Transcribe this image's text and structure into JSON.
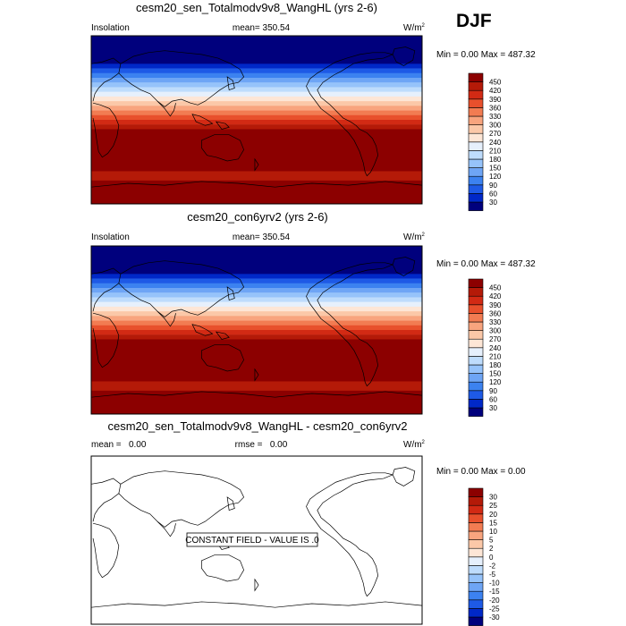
{
  "season": "DJF",
  "chart_data": [
    {
      "type": "heatmap",
      "title": "cesm20_sen_Totalmodv9v8_WangHL (yrs 2-6)",
      "left_label": "Insolation",
      "center_label": "mean= 350.54",
      "unit": "W/m",
      "unit_sup": "2",
      "stats_text": "Min =  0.00 Max = 487.32",
      "field": {
        "description": "Zonally uniform insolation, DJF",
        "lat_bands": [
          {
            "lat": [
              60,
              90
            ],
            "value": 15
          },
          {
            "lat": [
              55,
              60
            ],
            "value": 45
          },
          {
            "lat": [
              50,
              55
            ],
            "value": 75
          },
          {
            "lat": [
              45,
              50
            ],
            "value": 105
          },
          {
            "lat": [
              40,
              45
            ],
            "value": 135
          },
          {
            "lat": [
              35,
              40
            ],
            "value": 165
          },
          {
            "lat": [
              30,
              35
            ],
            "value": 195
          },
          {
            "lat": [
              25,
              30
            ],
            "value": 225
          },
          {
            "lat": [
              20,
              25
            ],
            "value": 255
          },
          {
            "lat": [
              15,
              20
            ],
            "value": 285
          },
          {
            "lat": [
              10,
              15
            ],
            "value": 315
          },
          {
            "lat": [
              5,
              10
            ],
            "value": 345
          },
          {
            "lat": [
              0,
              5
            ],
            "value": 375
          },
          {
            "lat": [
              -5,
              0
            ],
            "value": 405
          },
          {
            "lat": [
              -10,
              -5
            ],
            "value": 435
          },
          {
            "lat": [
              -55,
              -10
            ],
            "value": 465
          },
          {
            "lat": [
              -65,
              -55
            ],
            "value": 435
          },
          {
            "lat": [
              -90,
              -65
            ],
            "value": 465
          }
        ]
      },
      "colorbar": {
        "levels": [
          "30",
          "60",
          "90",
          "120",
          "150",
          "180",
          "210",
          "240",
          "270",
          "300",
          "330",
          "360",
          "390",
          "420",
          "450"
        ],
        "colors": [
          "#00007d",
          "#0028c8",
          "#1e5ae6",
          "#3c82f0",
          "#6ea5f5",
          "#96c3fa",
          "#bedcfc",
          "#e6f0fc",
          "#fde6d6",
          "#fbc8a8",
          "#f8a47e",
          "#f27c52",
          "#e8502c",
          "#d22a14",
          "#b41a08",
          "#8c0000"
        ]
      }
    },
    {
      "type": "heatmap",
      "title": "cesm20_con6yrv2 (yrs 2-6)",
      "left_label": "Insolation",
      "center_label": "mean= 350.54",
      "unit": "W/m",
      "unit_sup": "2",
      "stats_text": "Min =  0.00 Max = 487.32",
      "field": {
        "description": "Zonally uniform insolation, DJF",
        "lat_bands": [
          {
            "lat": [
              60,
              90
            ],
            "value": 15
          },
          {
            "lat": [
              55,
              60
            ],
            "value": 45
          },
          {
            "lat": [
              50,
              55
            ],
            "value": 75
          },
          {
            "lat": [
              45,
              50
            ],
            "value": 105
          },
          {
            "lat": [
              40,
              45
            ],
            "value": 135
          },
          {
            "lat": [
              35,
              40
            ],
            "value": 165
          },
          {
            "lat": [
              30,
              35
            ],
            "value": 195
          },
          {
            "lat": [
              25,
              30
            ],
            "value": 225
          },
          {
            "lat": [
              20,
              25
            ],
            "value": 255
          },
          {
            "lat": [
              15,
              20
            ],
            "value": 285
          },
          {
            "lat": [
              10,
              15
            ],
            "value": 315
          },
          {
            "lat": [
              5,
              10
            ],
            "value": 345
          },
          {
            "lat": [
              0,
              5
            ],
            "value": 375
          },
          {
            "lat": [
              -5,
              0
            ],
            "value": 405
          },
          {
            "lat": [
              -10,
              -5
            ],
            "value": 435
          },
          {
            "lat": [
              -55,
              -10
            ],
            "value": 465
          },
          {
            "lat": [
              -65,
              -55
            ],
            "value": 435
          },
          {
            "lat": [
              -90,
              -65
            ],
            "value": 465
          }
        ]
      },
      "colorbar": {
        "levels": [
          "30",
          "60",
          "90",
          "120",
          "150",
          "180",
          "210",
          "240",
          "270",
          "300",
          "330",
          "360",
          "390",
          "420",
          "450"
        ],
        "colors": [
          "#00007d",
          "#0028c8",
          "#1e5ae6",
          "#3c82f0",
          "#6ea5f5",
          "#96c3fa",
          "#bedcfc",
          "#e6f0fc",
          "#fde6d6",
          "#fbc8a8",
          "#f8a47e",
          "#f27c52",
          "#e8502c",
          "#d22a14",
          "#b41a08",
          "#8c0000"
        ]
      }
    },
    {
      "type": "heatmap",
      "title": "cesm20_sen_Totalmodv9v8_WangHL - cesm20_con6yrv2",
      "left_label": "mean =   0.00",
      "center_label": "rmse =   0.00",
      "unit": "W/m",
      "unit_sup": "2",
      "stats_text": "Min =  0.00 Max =  0.00",
      "annotation": "CONSTANT FIELD - VALUE IS .0",
      "field": {
        "description": "Difference field, constant 0",
        "lat_bands": []
      },
      "colorbar": {
        "levels": [
          "-30",
          "-25",
          "-20",
          "-15",
          "-10",
          "-5",
          "-2",
          "0",
          "2",
          "5",
          "10",
          "15",
          "20",
          "25",
          "30"
        ],
        "colors": [
          "#00007d",
          "#0028c8",
          "#1e5ae6",
          "#3c82f0",
          "#6ea5f5",
          "#96c3fa",
          "#bedcfc",
          "#e6f0fc",
          "#fde6d6",
          "#fbc8a8",
          "#f8a47e",
          "#f27c52",
          "#e8502c",
          "#d22a14",
          "#b41a08",
          "#8c0000"
        ]
      }
    }
  ]
}
